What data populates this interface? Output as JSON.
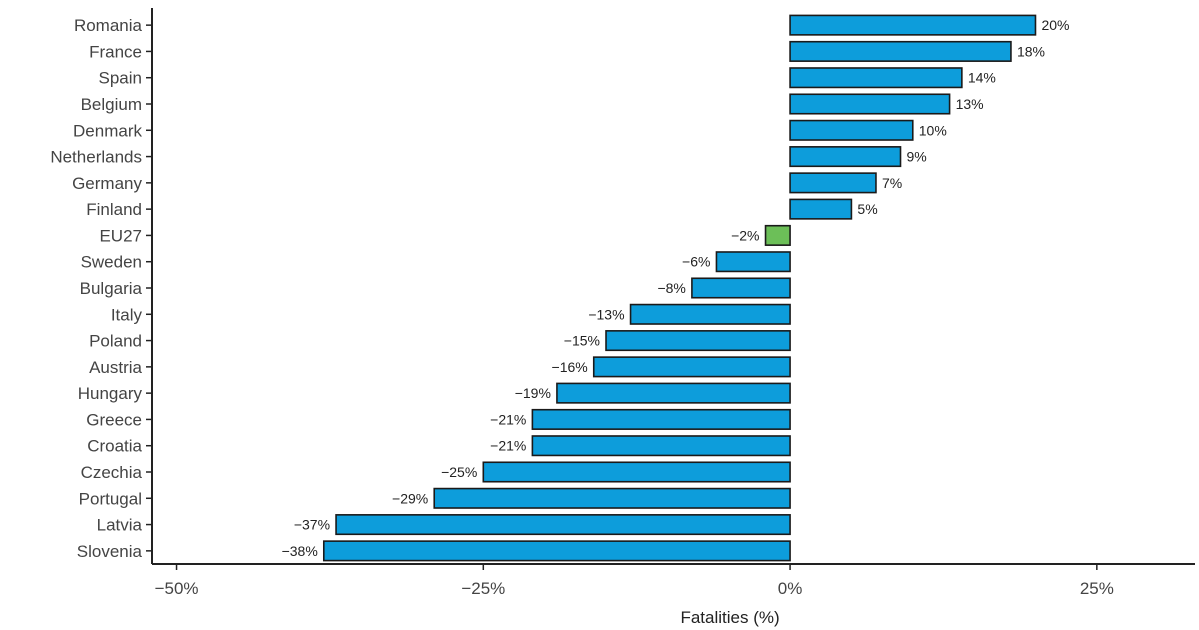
{
  "chart_data": {
    "type": "bar",
    "orientation": "horizontal",
    "xlabel": "Fatalities (%)",
    "xlim": [
      -52,
      33
    ],
    "x_ticks": [
      -50,
      -25,
      0,
      25
    ],
    "x_tick_labels": [
      "−50%",
      "−25%",
      "0%",
      "25%"
    ],
    "grid": false,
    "legend": "none",
    "categories": [
      "Romania",
      "France",
      "Spain",
      "Belgium",
      "Denmark",
      "Netherlands",
      "Germany",
      "Finland",
      "EU27",
      "Sweden",
      "Bulgaria",
      "Italy",
      "Poland",
      "Austria",
      "Hungary",
      "Greece",
      "Croatia",
      "Czechia",
      "Portugal",
      "Latvia",
      "Slovenia"
    ],
    "values": [
      20,
      18,
      14,
      13,
      10,
      9,
      7,
      5,
      -2,
      -6,
      -8,
      -13,
      -15,
      -16,
      -19,
      -21,
      -21,
      -25,
      -29,
      -37,
      -38
    ],
    "data_labels": [
      "20%",
      "18%",
      "14%",
      "13%",
      "10%",
      "9%",
      "7%",
      "5%",
      "−2%",
      "−6%",
      "−8%",
      "−13%",
      "−15%",
      "−16%",
      "−19%",
      "−21%",
      "−21%",
      "−25%",
      "−29%",
      "−37%",
      "−38%"
    ],
    "highlight_category": "EU27",
    "colors": {
      "bar": "#0d9ddb",
      "highlight": "#6cbf58",
      "outline": "#1a1a1a"
    }
  }
}
